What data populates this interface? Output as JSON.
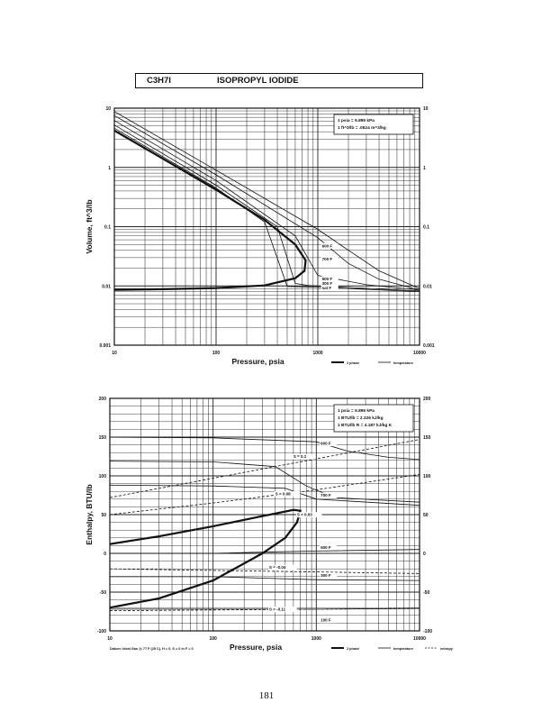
{
  "header": {
    "formula": "C3H7I",
    "name": "ISOPROPYL IODIDE"
  },
  "page_number": "181",
  "chart_data": [
    {
      "type": "line",
      "xlabel": "Pressure,  psia",
      "ylabel": "Volume,  ft^3/lb",
      "xscale": "log",
      "yscale": "log",
      "xlim": [
        10,
        10000
      ],
      "ylim": [
        0.001,
        10
      ],
      "xticks": [
        "10",
        "100",
        "1000",
        "10000"
      ],
      "yticks": [
        "10",
        "1",
        "0.1",
        "0.01",
        "0.001"
      ],
      "grid": true,
      "notes": [
        "1 psia = 6.895 kPa",
        "1 ft^3/lb = .0624 m^3/kg"
      ],
      "legend": {
        "placement": "bottom-right",
        "entries": [
          "2 phase",
          "temperature"
        ]
      },
      "series": [
        {
          "kind": "2 phase",
          "x": [
            10,
            30,
            100,
            300,
            600,
            760,
            740,
            600,
            300,
            100,
            30,
            10
          ],
          "y": [
            4.2,
            1.4,
            0.42,
            0.13,
            0.05,
            0.027,
            0.018,
            0.0135,
            0.0102,
            0.0092,
            0.0088,
            0.0086
          ]
        },
        {
          "kind": "temperature",
          "x": [
            10,
            100,
            1000,
            2000,
            4000,
            10000
          ],
          "y": [
            8.8,
            0.9,
            0.09,
            0.04,
            0.018,
            0.009
          ]
        },
        {
          "kind": "temperature",
          "x": [
            10,
            100,
            1000,
            2000,
            4000,
            10000
          ],
          "y": [
            7.5,
            0.75,
            0.065,
            0.024,
            0.013,
            0.0085
          ]
        },
        {
          "kind": "temperature",
          "x": [
            10,
            100,
            600,
            1000,
            3000,
            10000
          ],
          "y": [
            6.2,
            0.6,
            0.07,
            0.015,
            0.0105,
            0.0085
          ]
        },
        {
          "kind": "temperature",
          "x": [
            10,
            100,
            400,
            600,
            800,
            10000
          ],
          "y": [
            5.2,
            0.5,
            0.1,
            0.011,
            0.0102,
            0.0082
          ]
        },
        {
          "kind": "temperature",
          "x": [
            10,
            100,
            300,
            500,
            1000,
            10000
          ],
          "y": [
            4.6,
            0.45,
            0.12,
            0.0098,
            0.0095,
            0.008
          ]
        }
      ],
      "annotations": [
        {
          "text": "600 F",
          "x": 1100,
          "y": 0.045
        },
        {
          "text": "700 F",
          "x": 1100,
          "y": 0.027
        },
        {
          "text": "500 F",
          "x": 1100,
          "y": 0.0125
        },
        {
          "text": "300 F",
          "x": 1100,
          "y": 0.0105
        },
        {
          "text": "sat F",
          "x": 1100,
          "y": 0.0088
        }
      ]
    },
    {
      "type": "line",
      "xlabel": "Pressure,  psia",
      "ylabel": "Enthalpy,  BTU/lb",
      "xscale": "log",
      "xlim": [
        10,
        10000
      ],
      "ylim": [
        -100,
        200
      ],
      "xticks": [
        "10",
        "100",
        "1000",
        "10000"
      ],
      "yticks": [
        "200",
        "150",
        "100",
        "50",
        "0",
        "-50",
        "-100"
      ],
      "grid": true,
      "notes": [
        "1 psia = 6.895 kPa",
        "1 BTU/lb = 2.326 kJ/kg",
        "1 BTU/lb R = 4.187 kJ/kg K"
      ],
      "footer": "Datum: Ideal Gas @ 77 F (25 C),  H = 0,  S = 0 in F = 0",
      "legend": {
        "placement": "bottom-right",
        "entries": [
          "2 phase",
          "temperature",
          "entropy"
        ]
      },
      "series": [
        {
          "kind": "2 phase",
          "x": [
            10,
            30,
            100,
            300,
            600,
            700,
            650,
            500,
            300,
            100,
            30,
            10
          ],
          "y": [
            12,
            22,
            35,
            48,
            56,
            55,
            40,
            20,
            0,
            -35,
            -58,
            -70
          ]
        },
        {
          "kind": "temperature",
          "x": [
            10,
            100,
            1000,
            2000,
            5000,
            10000
          ],
          "y": [
            150,
            149,
            144,
            132,
            124,
            121
          ]
        },
        {
          "kind": "temperature",
          "x": [
            10,
            100,
            400,
            800,
            1500,
            10000
          ],
          "y": [
            119,
            118,
            112,
            87,
            72,
            66
          ]
        },
        {
          "kind": "temperature",
          "x": [
            10,
            100,
            500,
            1000,
            10000
          ],
          "y": [
            88,
            87,
            84,
            70,
            62
          ]
        },
        {
          "kind": "temperature",
          "x": [
            10,
            100,
            400,
            1000,
            10000
          ],
          "y": [
            0,
            0,
            2,
            3,
            5
          ]
        },
        {
          "kind": "temperature",
          "x": [
            10,
            100,
            300,
            1000,
            10000
          ],
          "y": [
            -30,
            -30,
            -32,
            -34,
            -35
          ]
        },
        {
          "kind": "temperature",
          "x": [
            10,
            100,
            1000,
            10000
          ],
          "y": [
            -72,
            -72,
            -72,
            -71
          ]
        },
        {
          "kind": "entropy",
          "x": [
            10,
            100,
            1000,
            10000
          ],
          "y": [
            72,
            97,
            122,
            147
          ]
        },
        {
          "kind": "entropy",
          "x": [
            10,
            100,
            1000,
            10000
          ],
          "y": [
            50,
            65,
            82,
            102
          ]
        },
        {
          "kind": "entropy",
          "x": [
            10,
            100,
            1000,
            10000
          ],
          "y": [
            -20,
            -22,
            -24,
            -26
          ]
        },
        {
          "kind": "entropy",
          "x": [
            10,
            100,
            1000,
            10000
          ],
          "y": [
            -74,
            -73,
            -72,
            -71
          ]
        }
      ],
      "annotations": [
        {
          "text": "600 F",
          "x": 1100,
          "y": 140
        },
        {
          "text": "S = 0.1",
          "x": 600,
          "y": 123
        },
        {
          "text": "S = 0.08",
          "x": 400,
          "y": 75
        },
        {
          "text": "700 F",
          "x": 1100,
          "y": 73
        },
        {
          "text": "S = 0.03",
          "x": 650,
          "y": 48
        },
        {
          "text": "500 F",
          "x": 1100,
          "y": 6
        },
        {
          "text": "S = -0.04",
          "x": 350,
          "y": -20
        },
        {
          "text": "300 F",
          "x": 1100,
          "y": -30
        },
        {
          "text": "S = -0.11",
          "x": 350,
          "y": -74
        },
        {
          "text": "100 F",
          "x": 1100,
          "y": -88
        }
      ]
    }
  ]
}
